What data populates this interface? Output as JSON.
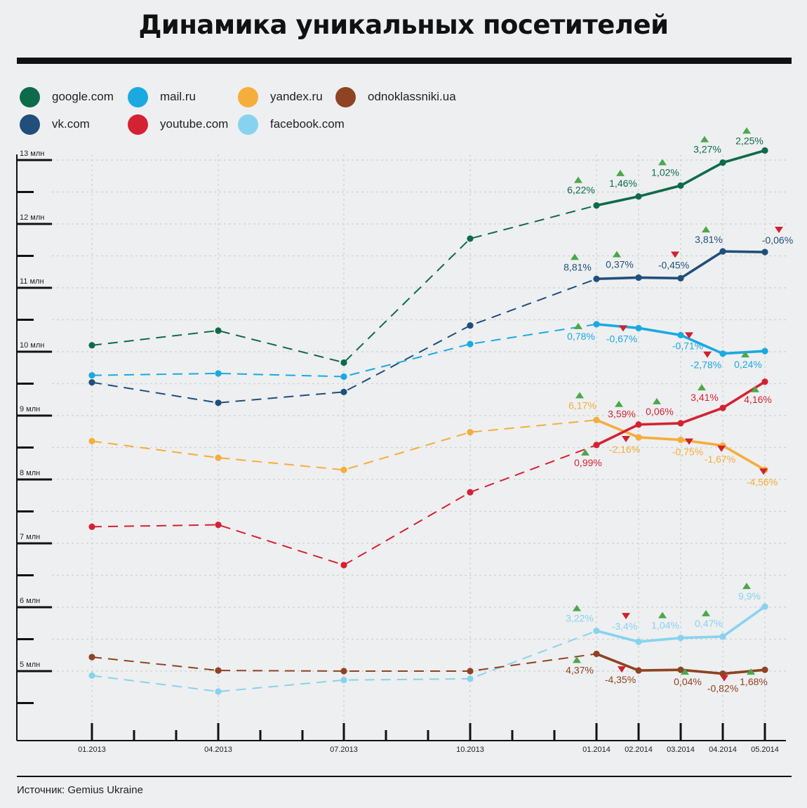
{
  "title": "Динамика уникальных посетителей",
  "source": "Источник: Gemius Ukraine",
  "legend": [
    {
      "label": "google.com",
      "color": "#0e6b4a"
    },
    {
      "label": "mail.ru",
      "color": "#1aa9e1"
    },
    {
      "label": "yandex.ru",
      "color": "#f5ad3c"
    },
    {
      "label": "odnoklassniki.ua",
      "color": "#8e4322"
    },
    {
      "label": "vk.com",
      "color": "#1f4f7a"
    },
    {
      "label": "youtube.com",
      "color": "#d42233"
    },
    {
      "label": "facebook.com",
      "color": "#87d3ef"
    }
  ],
  "chart_data": {
    "type": "line",
    "title": "Динамика уникальных посетителей",
    "x": [
      "01.2013",
      "04.2013",
      "07.2013",
      "10.2013",
      "01.2014",
      "02.2014",
      "03.2014",
      "04.2014",
      "05.2014"
    ],
    "y_ticks": [
      "5 млн",
      "6 млн",
      "7 млн",
      "8 млн",
      "9 млн",
      "10 млн",
      "11 млн",
      "12 млн",
      "13 млн"
    ],
    "y_tick_values": [
      5,
      6,
      7,
      8,
      9,
      10,
      11,
      12,
      13
    ],
    "ylim": [
      3.9,
      13.3
    ],
    "dashed_until": "01.2014",
    "series": [
      {
        "name": "google.com",
        "color": "#0e6b4a",
        "values": [
          10.1,
          10.33,
          9.83,
          11.77,
          12.29,
          12.43,
          12.6,
          12.96,
          13.15
        ],
        "changes": [
          "",
          "",
          "",
          "",
          "6,22%",
          "1,46%",
          "1,02%",
          "3,27%",
          "2,25%"
        ]
      },
      {
        "name": "vk.com",
        "color": "#1f4f7a",
        "values": [
          9.52,
          9.2,
          9.37,
          10.41,
          11.14,
          11.16,
          11.15,
          11.57,
          11.56
        ],
        "changes": [
          "",
          "",
          "",
          "",
          "8,81%",
          "0,37%",
          "-0,45%",
          "3,81%",
          "-0,06%"
        ]
      },
      {
        "name": "mail.ru",
        "color": "#1aa9e1",
        "values": [
          9.63,
          9.66,
          9.61,
          10.12,
          10.43,
          10.37,
          10.26,
          9.97,
          10.01
        ],
        "changes": [
          "",
          "",
          "",
          "",
          "0,78%",
          "-0,67%",
          "-0,71%",
          "-2,78%",
          "0,24%"
        ]
      },
      {
        "name": "yandex.ru",
        "color": "#f5ad3c",
        "values": [
          8.6,
          8.34,
          8.15,
          8.74,
          8.93,
          8.66,
          8.62,
          8.53,
          8.15
        ],
        "changes": [
          "",
          "",
          "",
          "",
          "6,17%",
          "-2,16%",
          "-0,75%",
          "-1,67%",
          "-4,56%"
        ]
      },
      {
        "name": "youtube.com",
        "color": "#d42233",
        "values": [
          7.26,
          7.29,
          6.66,
          7.8,
          8.54,
          8.86,
          8.88,
          9.12,
          9.53
        ],
        "changes": [
          "",
          "",
          "",
          "",
          "0,99%",
          "3,59%",
          "0,06%",
          "3,41%",
          "4,16%"
        ]
      },
      {
        "name": "facebook.com",
        "color": "#87d3ef",
        "values": [
          4.93,
          4.68,
          4.86,
          4.88,
          5.63,
          5.46,
          5.52,
          5.54,
          6.01
        ],
        "changes": [
          "",
          "",
          "",
          "",
          "3,22%",
          "-3,4%",
          "1,04%",
          "0,47%",
          "9,9%"
        ]
      },
      {
        "name": "odnoklassniki.ua",
        "color": "#8e4322",
        "values": [
          5.22,
          5.01,
          5.0,
          5.0,
          5.27,
          5.01,
          5.02,
          4.96,
          5.02
        ],
        "changes": [
          "",
          "",
          "",
          "",
          "4,37%",
          "-4,35%",
          "0,04%",
          "-0,82%",
          "1,68%"
        ]
      }
    ]
  }
}
